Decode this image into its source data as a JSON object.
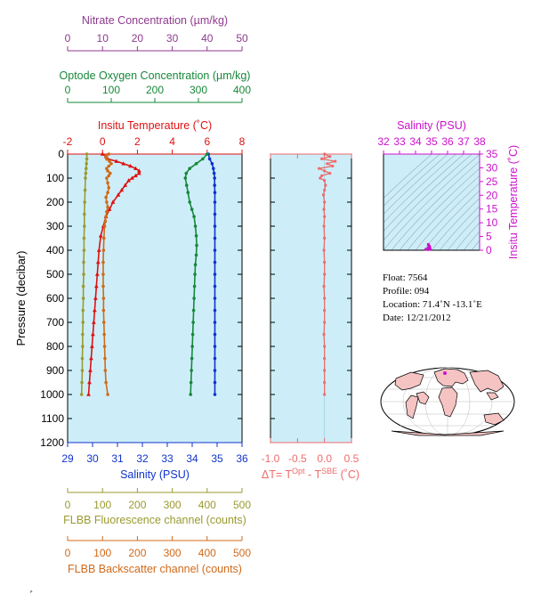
{
  "colors": {
    "nitrate": "#8e3a8e",
    "oxygen": "#16883a",
    "temperature": "#dd1111",
    "salinity": "#1133cc",
    "fluorescence": "#9a9a30",
    "backscatter": "#d06a1a",
    "delta": "#ee6b6b",
    "ts_salinity": "#cc11cc",
    "plot_bg": "#cdeef8",
    "land": "#f6c3c3"
  },
  "info": {
    "float": "Float:  7564",
    "profile": "Profile:  094",
    "location": "Location:  71.4˚N  -13.1˚E",
    "date": "Date:  12/21/2012"
  },
  "chart_data": [
    {
      "type": "line",
      "panel": "main",
      "ylabel": "Pressure (decibar)",
      "ylim": [
        1200,
        0
      ],
      "yticks": [
        "0",
        "100",
        "200",
        "300",
        "400",
        "500",
        "600",
        "700",
        "800",
        "900",
        "1000",
        "1100",
        "1200"
      ],
      "axes": {
        "nitrate": {
          "label": "Nitrate Concentration (µm/kg)",
          "lim": [
            0,
            50
          ],
          "ticks": [
            "0",
            "10",
            "20",
            "30",
            "40",
            "50"
          ]
        },
        "oxygen": {
          "label": "Optode Oxygen Concentration (µm/kg)",
          "lim": [
            0,
            400
          ],
          "ticks": [
            "0",
            "100",
            "200",
            "300",
            "400"
          ]
        },
        "temperature": {
          "label": "Insitu Temperature (˚C)",
          "lim": [
            -2,
            8
          ],
          "ticks": [
            "-2",
            "0",
            "2",
            "4",
            "6",
            "8"
          ]
        },
        "salinity": {
          "label": "Salinity (PSU)",
          "lim": [
            29,
            36
          ],
          "ticks": [
            "29",
            "30",
            "31",
            "32",
            "33",
            "34",
            "35",
            "36"
          ]
        },
        "fluorescence": {
          "label": "FLBB Fluorescence channel (counts)",
          "lim": [
            0,
            500
          ],
          "ticks": [
            "0",
            "100",
            "200",
            "300",
            "400",
            "500"
          ]
        },
        "backscatter": {
          "label": "FLBB Backscatter channel (counts)",
          "lim": [
            0,
            500
          ],
          "ticks": [
            "0",
            "100",
            "200",
            "300",
            "400",
            "500"
          ]
        }
      },
      "series": [
        {
          "key": "temperature",
          "axis": "temperature",
          "marker": "triangle",
          "points": [
            [
              0,
              0.0
            ],
            [
              10,
              0.2
            ],
            [
              20,
              0.3
            ],
            [
              30,
              0.8
            ],
            [
              40,
              1.2
            ],
            [
              50,
              1.6
            ],
            [
              60,
              1.9
            ],
            [
              70,
              2.1
            ],
            [
              80,
              2.1
            ],
            [
              90,
              1.9
            ],
            [
              100,
              1.7
            ],
            [
              110,
              1.5
            ],
            [
              130,
              1.3
            ],
            [
              150,
              1.1
            ],
            [
              170,
              0.9
            ],
            [
              200,
              0.6
            ],
            [
              230,
              0.4
            ],
            [
              260,
              0.2
            ],
            [
              300,
              0.05
            ],
            [
              340,
              -0.1
            ],
            [
              400,
              -0.2
            ],
            [
              450,
              -0.25
            ],
            [
              500,
              -0.3
            ],
            [
              550,
              -0.35
            ],
            [
              600,
              -0.4
            ],
            [
              650,
              -0.45
            ],
            [
              700,
              -0.5
            ],
            [
              750,
              -0.55
            ],
            [
              800,
              -0.6
            ],
            [
              850,
              -0.65
            ],
            [
              900,
              -0.7
            ],
            [
              950,
              -0.75
            ],
            [
              1000,
              -0.8
            ]
          ]
        },
        {
          "key": "salinity",
          "axis": "salinity",
          "marker": "circle",
          "points": [
            [
              0,
              34.65
            ],
            [
              20,
              34.7
            ],
            [
              40,
              34.8
            ],
            [
              60,
              34.85
            ],
            [
              80,
              34.88
            ],
            [
              100,
              34.9
            ],
            [
              130,
              34.9
            ],
            [
              160,
              34.91
            ],
            [
              200,
              34.91
            ],
            [
              250,
              34.91
            ],
            [
              300,
              34.91
            ],
            [
              350,
              34.91
            ],
            [
              400,
              34.91
            ],
            [
              450,
              34.91
            ],
            [
              500,
              34.91
            ],
            [
              550,
              34.91
            ],
            [
              600,
              34.91
            ],
            [
              650,
              34.91
            ],
            [
              700,
              34.91
            ],
            [
              750,
              34.91
            ],
            [
              800,
              34.91
            ],
            [
              850,
              34.91
            ],
            [
              900,
              34.91
            ],
            [
              950,
              34.91
            ],
            [
              1000,
              34.91
            ]
          ]
        },
        {
          "key": "oxygen",
          "axis": "oxygen",
          "marker": "circle",
          "points": [
            [
              0,
              320
            ],
            [
              20,
              310
            ],
            [
              40,
              295
            ],
            [
              60,
              280
            ],
            [
              80,
              272
            ],
            [
              100,
              270
            ],
            [
              130,
              273
            ],
            [
              160,
              276
            ],
            [
              200,
              280
            ],
            [
              230,
              285
            ],
            [
              260,
              290
            ],
            [
              300,
              293
            ],
            [
              340,
              295
            ],
            [
              380,
              296
            ],
            [
              420,
              295
            ],
            [
              460,
              293
            ],
            [
              500,
              292
            ],
            [
              550,
              291
            ],
            [
              600,
              290
            ],
            [
              650,
              289
            ],
            [
              700,
              288
            ],
            [
              750,
              287
            ],
            [
              800,
              286
            ],
            [
              850,
              285
            ],
            [
              900,
              284
            ],
            [
              950,
              283
            ],
            [
              1000,
              282
            ]
          ]
        },
        {
          "key": "nitrate",
          "axis": "nitrate",
          "marker": "circle",
          "points": []
        },
        {
          "key": "fluorescence",
          "axis": "fluorescence",
          "marker": "circle",
          "points": [
            [
              0,
              55
            ],
            [
              20,
              55
            ],
            [
              40,
              54
            ],
            [
              60,
              53
            ],
            [
              80,
              52
            ],
            [
              100,
              51
            ],
            [
              150,
              50
            ],
            [
              200,
              49
            ],
            [
              250,
              48
            ],
            [
              300,
              48
            ],
            [
              350,
              47
            ],
            [
              400,
              47
            ],
            [
              450,
              46
            ],
            [
              500,
              46
            ],
            [
              550,
              45
            ],
            [
              600,
              45
            ],
            [
              650,
              44
            ],
            [
              700,
              44
            ],
            [
              750,
              43
            ],
            [
              800,
              43
            ],
            [
              850,
              42
            ],
            [
              900,
              42
            ],
            [
              950,
              41
            ],
            [
              1000,
              40
            ]
          ]
        },
        {
          "key": "backscatter",
          "axis": "backscatter",
          "marker": "circle",
          "points": [
            [
              0,
              118
            ],
            [
              10,
              110
            ],
            [
              20,
              112
            ],
            [
              30,
              120
            ],
            [
              40,
              125
            ],
            [
              50,
              118
            ],
            [
              60,
              112
            ],
            [
              70,
              115
            ],
            [
              80,
              122
            ],
            [
              90,
              118
            ],
            [
              100,
              112
            ],
            [
              120,
              115
            ],
            [
              140,
              118
            ],
            [
              160,
              115
            ],
            [
              180,
              110
            ],
            [
              200,
              112
            ],
            [
              220,
              115
            ],
            [
              240,
              112
            ],
            [
              260,
              110
            ],
            [
              280,
              108
            ],
            [
              300,
              106
            ],
            [
              350,
              104
            ],
            [
              400,
              103
            ],
            [
              450,
              102
            ],
            [
              500,
              102
            ],
            [
              550,
              102
            ],
            [
              600,
              103
            ],
            [
              650,
              103
            ],
            [
              700,
              104
            ],
            [
              750,
              105
            ],
            [
              800,
              106
            ],
            [
              850,
              107
            ],
            [
              900,
              108
            ],
            [
              950,
              110
            ],
            [
              1000,
              115
            ]
          ]
        }
      ]
    },
    {
      "type": "line",
      "panel": "delta",
      "xlabel": "ΔT= T^Opt - T^SBE (˚C)",
      "xlim": [
        -1.0,
        0.5
      ],
      "xticks": [
        "-1.0",
        "-0.5",
        "0.0",
        "0.5"
      ],
      "ylim": [
        1200,
        0
      ],
      "points": [
        [
          0,
          0.0
        ],
        [
          10,
          0.1
        ],
        [
          20,
          -0.05
        ],
        [
          30,
          0.2
        ],
        [
          40,
          0.05
        ],
        [
          50,
          0.15
        ],
        [
          60,
          -0.1
        ],
        [
          70,
          0.0
        ],
        [
          80,
          0.1
        ],
        [
          90,
          -0.05
        ],
        [
          100,
          -0.08
        ],
        [
          110,
          0.0
        ],
        [
          130,
          0.02
        ],
        [
          150,
          0.0
        ],
        [
          170,
          -0.02
        ],
        [
          200,
          0.0
        ],
        [
          230,
          -0.01
        ],
        [
          260,
          0.0
        ],
        [
          300,
          -0.01
        ],
        [
          350,
          0.0
        ],
        [
          400,
          -0.01
        ],
        [
          450,
          0.0
        ],
        [
          500,
          0.0
        ],
        [
          550,
          -0.01
        ],
        [
          600,
          0.0
        ],
        [
          650,
          0.0
        ],
        [
          700,
          0.0
        ],
        [
          750,
          -0.01
        ],
        [
          800,
          0.0
        ],
        [
          850,
          0.0
        ],
        [
          900,
          0.0
        ],
        [
          950,
          0.0
        ],
        [
          1000,
          0.0
        ]
      ]
    },
    {
      "type": "scatter",
      "panel": "ts",
      "xlabel": "Salinity (PSU)",
      "ylabel": "Insitu Temperature (˚C)",
      "xlim": [
        32,
        38
      ],
      "ylim": [
        0,
        35
      ],
      "xticks": [
        "32",
        "33",
        "34",
        "35",
        "36",
        "37",
        "38"
      ],
      "yticks": [
        "0",
        "5",
        "10",
        "15",
        "20",
        "25",
        "30",
        "35"
      ],
      "points": [
        [
          34.65,
          0.0
        ],
        [
          34.8,
          2.1
        ],
        [
          34.85,
          1.6
        ],
        [
          34.88,
          1.3
        ],
        [
          34.9,
          0.8
        ],
        [
          34.91,
          0.3
        ],
        [
          34.91,
          -0.2
        ]
      ]
    }
  ]
}
